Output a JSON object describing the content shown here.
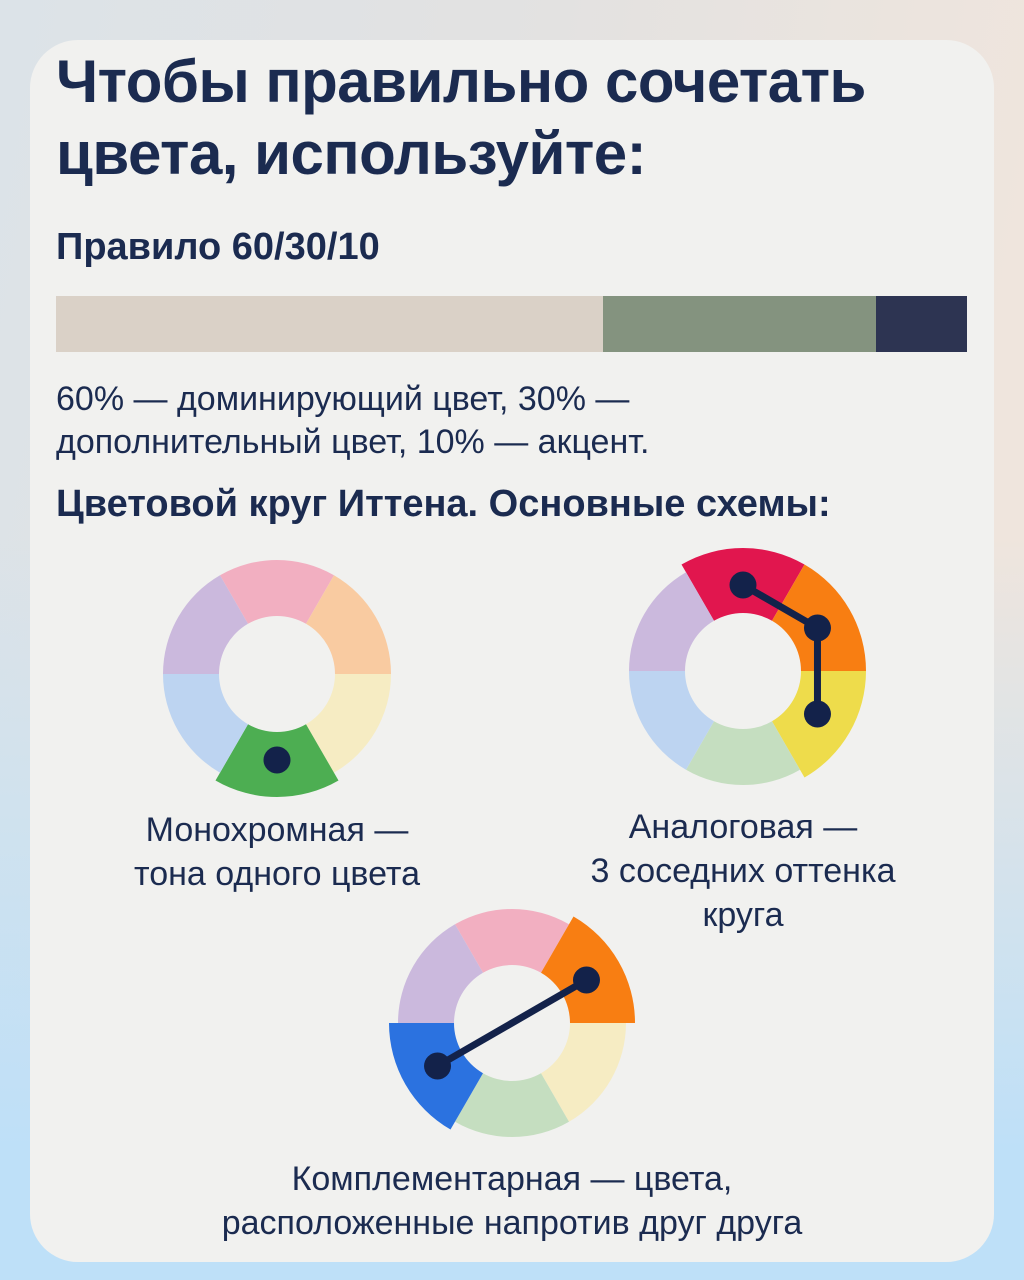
{
  "card": {
    "title": "Чтобы правильно сочетать\nцвета, используйте:"
  },
  "rule": {
    "heading": "Правило 60/30/10",
    "bar_segments": [
      {
        "name": "dominant-60",
        "percent": 60,
        "color": "#DAD1C7"
      },
      {
        "name": "secondary-30",
        "percent": 30,
        "color": "#84937F"
      },
      {
        "name": "accent-10",
        "percent": 10,
        "color": "#2D3452"
      }
    ],
    "description": "60% — доминирующий цвет, 30% —\nдополнительный цвет, 10% — акцент."
  },
  "wheels_section": {
    "heading": "Цветовой круг Иттена. Основные схемы:",
    "palette": {
      "pink": "#F2AFC1",
      "peach": "#F9CBA1",
      "paleYellow": "#F6ECC3",
      "paleGreen": "#C5DEC0",
      "paleBlue": "#BDD4F1",
      "lavender": "#CBB9DD",
      "red": "#E1164E",
      "orange": "#F87E12",
      "yellow": "#EEDC4B",
      "green": "#4DAE52",
      "blue": "#2B72E0"
    },
    "dot_color": "#13224A",
    "geometry": {
      "outer_radius": 114,
      "inner_radius": 58,
      "exploded_outer_radius": 123,
      "dot_radius": 13.5,
      "dot_track_radius": 86,
      "line_width": 7
    },
    "wheels": [
      {
        "id": "monochrome",
        "segments": [
          "pink",
          "peach",
          "paleYellow",
          "green",
          "paleBlue",
          "lavender"
        ],
        "highlight": [
          3
        ],
        "dots_deg": [
          180
        ],
        "connect": false,
        "caption": "Монохромная —\nтона одного цвета"
      },
      {
        "id": "analogous",
        "segments": [
          "red",
          "orange",
          "yellow",
          "paleGreen",
          "paleBlue",
          "lavender"
        ],
        "highlight": [
          0,
          1,
          2
        ],
        "dots_deg": [
          0,
          60,
          120
        ],
        "connect": true,
        "caption": "Аналоговая —\n3 соседних оттенка\nкруга"
      },
      {
        "id": "complementary",
        "segments": [
          "pink",
          "orange",
          "paleYellow",
          "paleGreen",
          "blue",
          "lavender"
        ],
        "highlight": [
          1,
          4
        ],
        "dots_deg": [
          60,
          240
        ],
        "connect": true,
        "caption": "Комплементарная — цвета,\nрасположенные напротив друг друга"
      }
    ]
  }
}
